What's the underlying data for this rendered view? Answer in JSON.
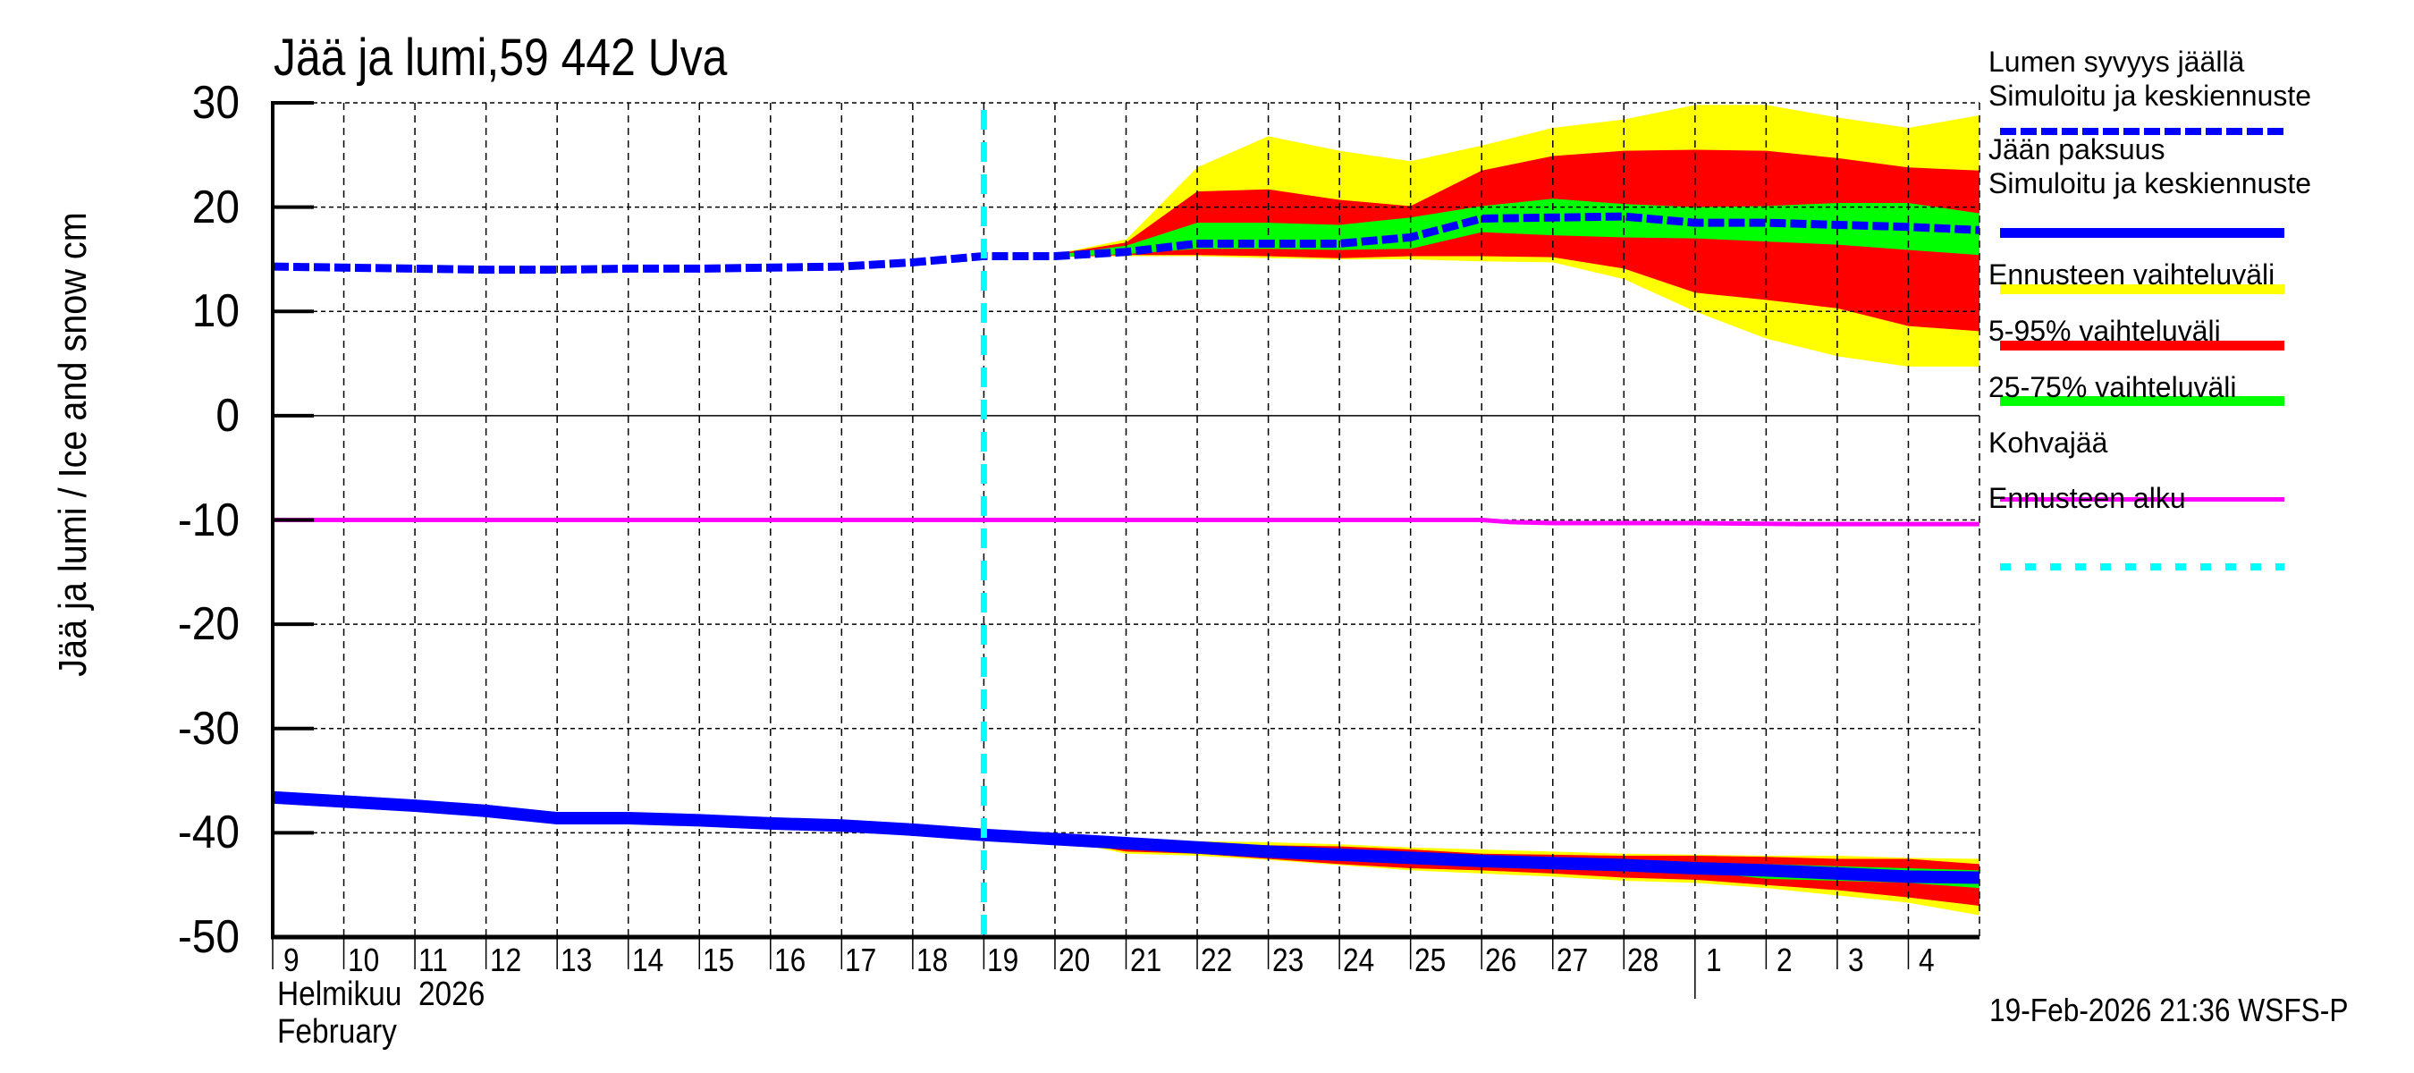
{
  "title": "Jää ja lumi,59 442 Uva",
  "y_axis_label": "Jää ja lumi / Ice and snow    cm",
  "x_axis": {
    "month_line1": "Helmikuu  2026",
    "month_line2": "February",
    "tick_labels": [
      "9",
      "10",
      "11",
      "12",
      "13",
      "14",
      "15",
      "16",
      "17",
      "18",
      "19",
      "20",
      "21",
      "22",
      "23",
      "24",
      "25",
      "26",
      "27",
      "28",
      "1",
      "2",
      "3",
      "4"
    ]
  },
  "y_axis": {
    "tick_labels": [
      "30",
      "20",
      "10",
      "0",
      "-10",
      "-20",
      "-30",
      "-40",
      "-50"
    ]
  },
  "footer": "19-Feb-2026 21:36 WSFS-P",
  "legend": {
    "snow_title": "Lumen syvyys jäällä",
    "snow_sub": "Simuloitu ja keskiennuste",
    "ice_title": "Jään paksuus",
    "ice_sub": "Simuloitu ja keskiennuste",
    "range_full": "Ennusteen vaihteluväli",
    "range_5_95": "5-95% vaihteluväli",
    "range_25_75": "25-75% vaihteluväli",
    "slush": "Kohvajää",
    "forecast_start": "Ennusteen alku"
  },
  "colors": {
    "snow": "#0000ff",
    "ice": "#0000ff",
    "range_full": "#ffff00",
    "range_5_95": "#ff0000",
    "range_25_75": "#00ff00",
    "slush": "#ff00ff",
    "forecast_start": "#00ffff"
  },
  "chart_data": {
    "type": "line",
    "title": "Jää ja lumi,59 442 Uva",
    "xlabel": "Helmikuu 2026 / February",
    "ylabel": "Jää ja lumi / Ice and snow cm",
    "ylim": [
      -50,
      30
    ],
    "x_day_index_range": [
      9,
      33
    ],
    "x_note": "day index counted from Feb 1 (29 = Mar 1)",
    "grid": true,
    "forecast_start_day": 19,
    "snow_depth": {
      "x": [
        9,
        10,
        11,
        12,
        13,
        14,
        15,
        16,
        17,
        18,
        19,
        20,
        21,
        22,
        23,
        24,
        25,
        26,
        27,
        28,
        29,
        30,
        31,
        32,
        33
      ],
      "values": [
        14.3,
        14.2,
        14.1,
        14.0,
        14.0,
        14.1,
        14.1,
        14.2,
        14.3,
        14.7,
        15.3,
        15.3,
        15.7,
        16.5,
        16.5,
        16.5,
        17.1,
        18.9,
        19.0,
        19.1,
        18.5,
        18.5,
        18.3,
        18.1,
        17.8
      ]
    },
    "snow_bands": {
      "x": [
        20,
        21,
        22,
        23,
        24,
        25,
        26,
        27,
        28,
        29,
        30,
        31,
        32,
        33
      ],
      "full_max": [
        15.5,
        16.9,
        23.8,
        26.8,
        25.4,
        24.4,
        25.9,
        27.6,
        28.4,
        29.8,
        29.8,
        28.6,
        27.6,
        28.8
      ],
      "full_min": [
        15.2,
        15.3,
        15.3,
        15.1,
        15.0,
        15.0,
        14.8,
        14.7,
        13.1,
        10.0,
        7.4,
        5.7,
        4.7,
        4.7
      ],
      "p95": [
        15.5,
        16.6,
        21.5,
        21.7,
        20.7,
        20.1,
        23.5,
        24.9,
        25.4,
        25.5,
        25.4,
        24.7,
        23.8,
        23.5
      ],
      "p5": [
        15.2,
        15.4,
        15.4,
        15.3,
        15.1,
        15.3,
        15.3,
        15.2,
        14.1,
        11.8,
        11.1,
        10.3,
        8.6,
        8.1
      ],
      "p75": [
        15.4,
        16.3,
        18.5,
        18.5,
        18.3,
        19.0,
        20.1,
        20.8,
        20.3,
        20.0,
        20.1,
        20.4,
        20.4,
        19.4
      ],
      "p25": [
        15.2,
        15.5,
        16.0,
        16.0,
        15.9,
        16.0,
        17.6,
        17.3,
        17.1,
        17.0,
        16.7,
        16.4,
        15.9,
        15.4
      ]
    },
    "ice_thickness_plotted_negative": {
      "x": [
        9,
        10,
        11,
        12,
        13,
        14,
        15,
        16,
        17,
        18,
        19,
        20,
        21,
        22,
        23,
        24,
        25,
        26,
        27,
        28,
        29,
        30,
        31,
        32,
        33
      ],
      "values": [
        -36.6,
        -37.0,
        -37.4,
        -37.9,
        -38.6,
        -38.6,
        -38.8,
        -39.1,
        -39.3,
        -39.7,
        -40.2,
        -40.6,
        -41.0,
        -41.4,
        -41.8,
        -42.1,
        -42.4,
        -42.7,
        -42.9,
        -43.1,
        -43.4,
        -43.6,
        -43.9,
        -44.2,
        -44.3
      ]
    },
    "ice_bands": {
      "x": [
        20,
        21,
        22,
        23,
        24,
        25,
        26,
        27,
        28,
        29,
        30,
        31,
        32,
        33
      ],
      "full_max": [
        -40.6,
        -40.7,
        -40.8,
        -40.9,
        -41.1,
        -41.4,
        -41.6,
        -41.8,
        -42.0,
        -42.1,
        -42.2,
        -42.2,
        -42.4,
        -42.5
      ],
      "full_min": [
        -40.6,
        -42.0,
        -42.2,
        -42.6,
        -43.1,
        -43.6,
        -43.9,
        -44.2,
        -44.6,
        -44.8,
        -45.3,
        -46.0,
        -46.7,
        -47.9
      ],
      "p95": [
        -40.6,
        -40.8,
        -41.0,
        -41.2,
        -41.3,
        -41.6,
        -42.0,
        -42.1,
        -42.2,
        -42.2,
        -42.3,
        -42.5,
        -42.5,
        -43.0
      ],
      "p5": [
        -40.6,
        -41.8,
        -42.0,
        -42.5,
        -43.0,
        -43.4,
        -43.6,
        -43.9,
        -44.3,
        -44.5,
        -45.0,
        -45.5,
        -46.2,
        -47.0
      ],
      "p75": [
        -40.6,
        -40.9,
        -41.2,
        -41.6,
        -41.9,
        -42.2,
        -42.5,
        -42.7,
        -42.9,
        -43.0,
        -43.0,
        -43.2,
        -43.4,
        -43.6
      ],
      "p25": [
        -40.6,
        -41.1,
        -41.6,
        -42.0,
        -42.3,
        -42.6,
        -42.9,
        -43.1,
        -43.4,
        -43.7,
        -44.4,
        -44.6,
        -44.8,
        -45.3
      ]
    },
    "slush_ice_kohvajaa": {
      "x": [
        9,
        26,
        26.4,
        27,
        29,
        30.5,
        33
      ],
      "values": [
        -10.0,
        -10.0,
        -10.2,
        -10.3,
        -10.3,
        -10.4,
        -10.4
      ]
    },
    "legend_position": "right"
  }
}
